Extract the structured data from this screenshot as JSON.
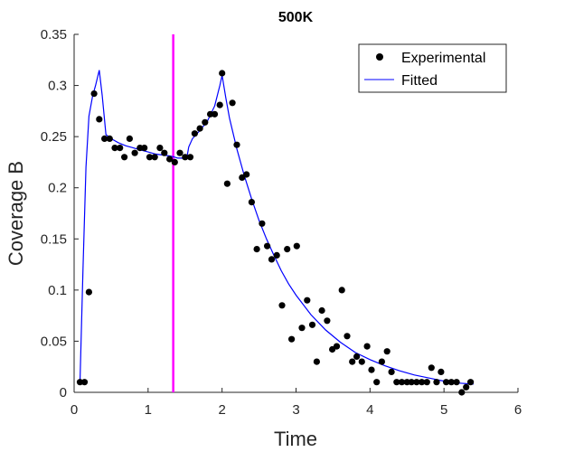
{
  "chart_data": {
    "type": "scatter",
    "title": "500K",
    "xlabel": "Time",
    "ylabel": "Coverage B",
    "xlim": [
      0,
      6
    ],
    "ylim": [
      0,
      0.35
    ],
    "xticks": [
      0,
      1,
      2,
      3,
      4,
      5,
      6
    ],
    "yticks": [
      0,
      0.05,
      0.1,
      0.15,
      0.2,
      0.25,
      0.3,
      0.35
    ],
    "xtick_labels": [
      "0",
      "1",
      "2",
      "3",
      "4",
      "5",
      "6"
    ],
    "ytick_labels": [
      "0",
      "0.05",
      "0.1",
      "0.15",
      "0.2",
      "0.25",
      "0.3",
      "0.35"
    ],
    "grid": false,
    "legend_position": "top-right",
    "vertical_line": {
      "x": 1.34,
      "color": "#ff00ff"
    },
    "series": [
      {
        "name": "Experimental",
        "style": "markers",
        "color": "#000000",
        "x": [
          0.08,
          0.14,
          0.2,
          0.27,
          0.34,
          0.41,
          0.48,
          0.55,
          0.62,
          0.68,
          0.75,
          0.82,
          0.89,
          0.95,
          1.02,
          1.09,
          1.16,
          1.22,
          1.29,
          1.36,
          1.43,
          1.5,
          1.57,
          1.63,
          1.7,
          1.77,
          1.84,
          1.9,
          1.97,
          2.0,
          2.07,
          2.14,
          2.2,
          2.27,
          2.33,
          2.4,
          2.47,
          2.54,
          2.61,
          2.67,
          2.74,
          2.81,
          2.88,
          2.94,
          3.01,
          3.08,
          3.15,
          3.22,
          3.28,
          3.35,
          3.42,
          3.49,
          3.55,
          3.62,
          3.69,
          3.76,
          3.82,
          3.89,
          3.96,
          4.02,
          4.09,
          4.16,
          4.23,
          4.29,
          4.36,
          4.43,
          4.5,
          4.56,
          4.63,
          4.7,
          4.77,
          4.83,
          4.9,
          4.96,
          5.03,
          5.1,
          5.17,
          5.24,
          5.3,
          5.36
        ],
        "y": [
          0.01,
          0.01,
          0.098,
          0.292,
          0.267,
          0.248,
          0.248,
          0.239,
          0.239,
          0.23,
          0.248,
          0.234,
          0.239,
          0.239,
          0.23,
          0.23,
          0.239,
          0.234,
          0.228,
          0.225,
          0.234,
          0.23,
          0.23,
          0.253,
          0.258,
          0.264,
          0.272,
          0.272,
          0.281,
          0.312,
          0.204,
          0.283,
          0.242,
          0.21,
          0.213,
          0.186,
          0.14,
          0.165,
          0.143,
          0.13,
          0.134,
          0.085,
          0.14,
          0.052,
          0.143,
          0.063,
          0.09,
          0.066,
          0.03,
          0.08,
          0.07,
          0.042,
          0.045,
          0.1,
          0.055,
          0.03,
          0.035,
          0.03,
          0.045,
          0.022,
          0.01,
          0.03,
          0.04,
          0.02,
          0.01,
          0.01,
          0.01,
          0.01,
          0.01,
          0.01,
          0.01,
          0.024,
          0.01,
          0.02,
          0.01,
          0.01,
          0.01,
          0.0,
          0.005,
          0.01
        ]
      },
      {
        "name": "Fitted",
        "style": "line",
        "color": "#0000ff",
        "x": [
          0.08,
          0.12,
          0.16,
          0.2,
          0.25,
          0.29,
          0.34,
          0.38,
          0.43,
          0.5,
          0.6,
          0.7,
          0.8,
          0.9,
          1.0,
          1.1,
          1.2,
          1.3,
          1.36,
          1.4,
          1.45,
          1.52,
          1.55,
          1.6,
          1.7,
          1.8,
          1.9,
          1.97,
          2.0,
          2.05,
          2.1,
          2.2,
          2.3,
          2.4,
          2.5,
          2.6,
          2.7,
          2.8,
          2.9,
          3.0,
          3.2,
          3.4,
          3.6,
          3.8,
          4.0,
          4.2,
          4.4,
          4.6,
          4.8,
          5.0,
          5.2,
          5.4
        ],
        "y": [
          0.01,
          0.12,
          0.22,
          0.27,
          0.29,
          0.3,
          0.315,
          0.29,
          0.252,
          0.248,
          0.244,
          0.241,
          0.239,
          0.237,
          0.235,
          0.233,
          0.232,
          0.231,
          0.23,
          0.229,
          0.229,
          0.228,
          0.24,
          0.248,
          0.256,
          0.265,
          0.28,
          0.3,
          0.31,
          0.288,
          0.268,
          0.238,
          0.212,
          0.189,
          0.168,
          0.15,
          0.134,
          0.119,
          0.106,
          0.095,
          0.076,
          0.061,
          0.049,
          0.039,
          0.032,
          0.026,
          0.021,
          0.017,
          0.014,
          0.011,
          0.009,
          0.008
        ]
      }
    ]
  }
}
